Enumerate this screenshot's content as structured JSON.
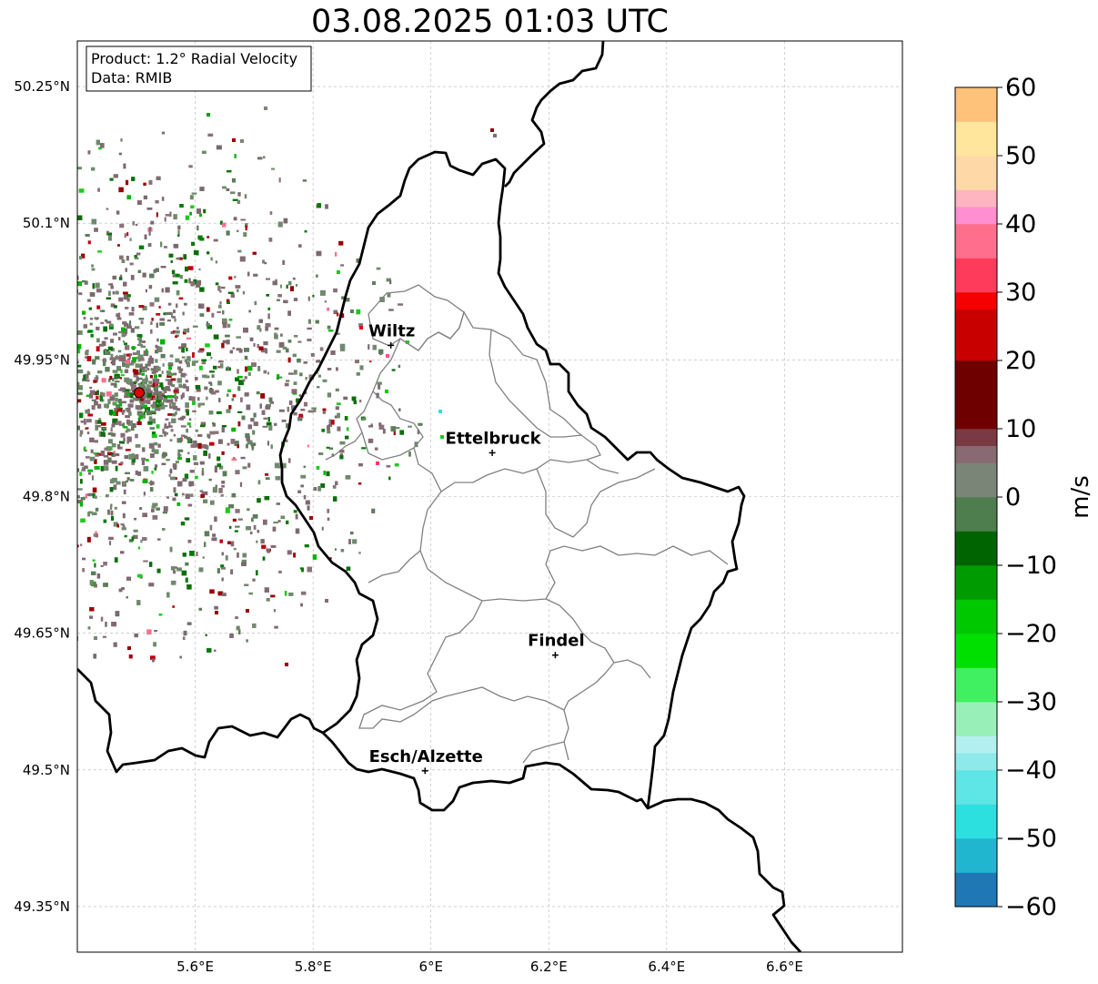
{
  "title": "03.08.2025 01:03 UTC",
  "info_box": {
    "product_line": "Product: 1.2° Radial Velocity",
    "data_line": "Data: RMIB"
  },
  "map": {
    "lon_range": [
      5.4,
      6.8
    ],
    "lat_range": [
      49.3,
      50.3
    ],
    "lon_ticks": [
      "5.6°E",
      "5.8°E",
      "6°E",
      "6.2°E",
      "6.4°E",
      "6.6°E"
    ],
    "lon_tick_values": [
      5.6,
      5.8,
      6.0,
      6.2,
      6.4,
      6.6
    ],
    "lat_ticks": [
      "50.25°N",
      "50.1°N",
      "49.95°N",
      "49.8°N",
      "49.65°N",
      "49.5°N",
      "49.35°N"
    ],
    "lat_tick_values": [
      50.25,
      50.1,
      49.95,
      49.8,
      49.65,
      49.5,
      49.35
    ],
    "gridlines": true,
    "radar_site": {
      "lon": 5.505,
      "lat": 49.914
    },
    "cities": [
      {
        "name": "Wiltz",
        "lon": 5.932,
        "lat": 49.966
      },
      {
        "name": "Ettelbruck",
        "lon": 6.104,
        "lat": 49.848
      },
      {
        "name": "Findel",
        "lon": 6.211,
        "lat": 49.626
      },
      {
        "name": "Esch/Alzette",
        "lon": 5.99,
        "lat": 49.499
      }
    ]
  },
  "colorbar": {
    "label": "m/s",
    "min": -60,
    "max": 60,
    "ticks": [
      "60",
      "50",
      "40",
      "30",
      "20",
      "10",
      "0",
      "−10",
      "−20",
      "−30",
      "−40",
      "−50",
      "−60"
    ],
    "tick_values": [
      60,
      50,
      40,
      30,
      20,
      10,
      0,
      -10,
      -20,
      -30,
      -40,
      -50,
      -60
    ],
    "color_stops": [
      {
        "v": -60,
        "c": "#1f77b4"
      },
      {
        "v": -55,
        "c": "#21b6d0"
      },
      {
        "v": -50,
        "c": "#2de0e0"
      },
      {
        "v": -45,
        "c": "#5ee6e6"
      },
      {
        "v": -40,
        "c": "#8de9ea"
      },
      {
        "v": -37,
        "c": "#b4efef"
      },
      {
        "v": -35,
        "c": "#98f0b8"
      },
      {
        "v": -30,
        "c": "#40f060"
      },
      {
        "v": -25,
        "c": "#00e000"
      },
      {
        "v": -20,
        "c": "#00c800"
      },
      {
        "v": -15,
        "c": "#009b00"
      },
      {
        "v": -10,
        "c": "#006400"
      },
      {
        "v": -6,
        "c": "#4e7d4e"
      },
      {
        "v": 0,
        "c": "#7a8577"
      },
      {
        "v": 4,
        "c": "#876a72"
      },
      {
        "v": 8,
        "c": "#7a3a44"
      },
      {
        "v": 10,
        "c": "#6e0000"
      },
      {
        "v": 20,
        "c": "#c80000"
      },
      {
        "v": 28,
        "c": "#f50000"
      },
      {
        "v": 30,
        "c": "#ff3b5c"
      },
      {
        "v": 35,
        "c": "#ff6e8c"
      },
      {
        "v": 40,
        "c": "#ff8fd0"
      },
      {
        "v": 43,
        "c": "#ffb4c0"
      },
      {
        "v": 46,
        "c": "#ffd8a8"
      },
      {
        "v": 50,
        "c": "#ffe69c"
      },
      {
        "v": 55,
        "c": "#ffc27a"
      },
      {
        "v": 60,
        "c": "#ffa050"
      }
    ]
  }
}
